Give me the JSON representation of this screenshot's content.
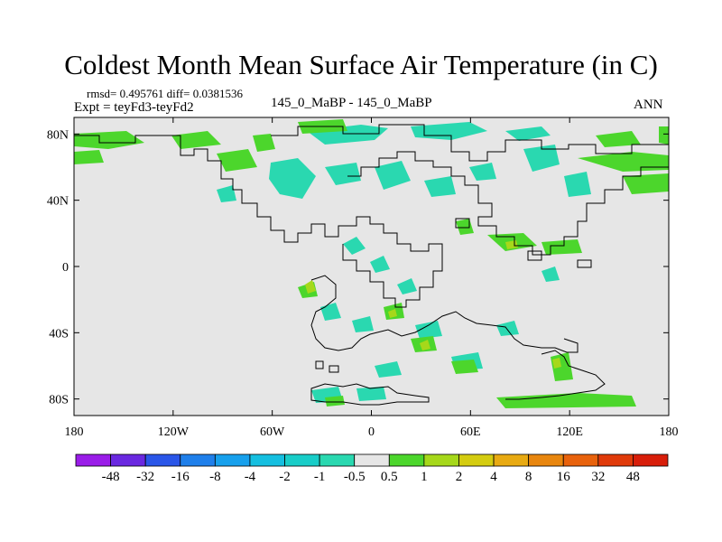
{
  "title": "Coldest Month Mean Surface Air Temperature (in C)",
  "stats_line": "rmsd= 0.495761 diff= 0.0381536",
  "experiment": "Expt = teyFd3-teyFd2",
  "center_label": "145_0_MaBP - 145_0_MaBP",
  "season": "ANN",
  "map": {
    "lat_labels": [
      "80N",
      "40N",
      "0",
      "40S",
      "80S"
    ],
    "lat_values": [
      80,
      40,
      0,
      -40,
      -80
    ],
    "lon_labels": [
      "180",
      "120W",
      "60W",
      "0",
      "60E",
      "120E",
      "180"
    ],
    "lon_values": [
      -180,
      -120,
      -60,
      0,
      60,
      120,
      180
    ],
    "background_color": "#e6e6e6",
    "land_outline_color": "#000000"
  },
  "colorbar": {
    "labels": [
      "-48",
      "-32",
      "-16",
      "-8",
      "-4",
      "-2",
      "-1",
      "-0.5",
      "0.5",
      "1",
      "2",
      "4",
      "8",
      "16",
      "32",
      "48"
    ],
    "colors": [
      "#9a1de8",
      "#6a28e0",
      "#2a56e8",
      "#1f7fea",
      "#17a0ec",
      "#15bfe0",
      "#18cdc8",
      "#2ad8b0",
      "#e6e6e6",
      "#4cd62c",
      "#a6d81a",
      "#d4cc10",
      "#e8aa12",
      "#e8860e",
      "#e8620c",
      "#e03a0a",
      "#d81e0a"
    ]
  }
}
